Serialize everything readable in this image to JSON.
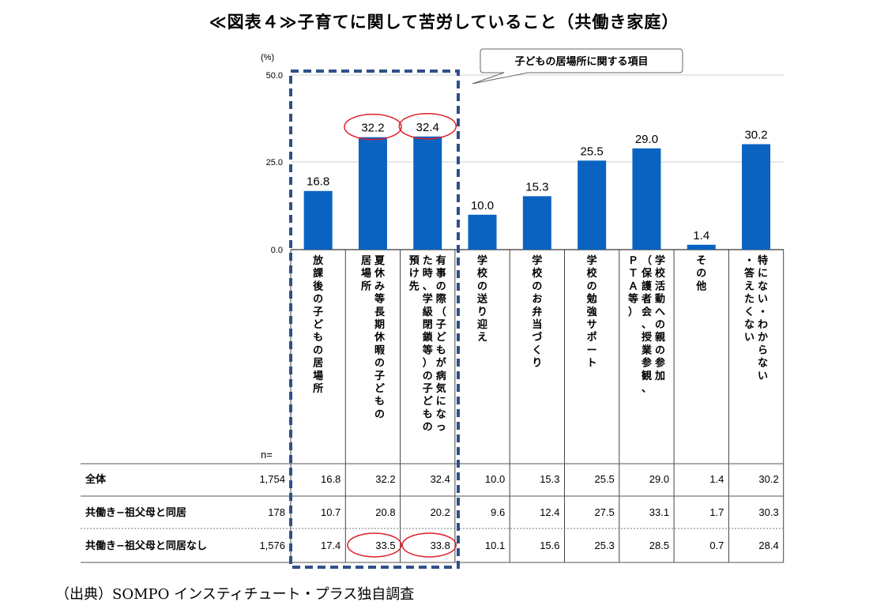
{
  "title": "≪図表４≫子育てに関して苦労していること（共働き家庭）",
  "source": "（出典）SOMPO インスティチュート・プラス独自調査",
  "callout": "子どもの居場所に関する項目",
  "n_label": "n=",
  "colors": {
    "bar": "#0b63c1",
    "highlight": "#e0202a",
    "box": "#2f4f8a"
  },
  "chart_data": {
    "type": "bar",
    "title": "≪図表４≫子育てに関して苦労していること（共働き家庭）",
    "ylabel": "(%)",
    "ylim": [
      0,
      50
    ],
    "yticks": [
      "50.0",
      "25.0",
      "0.0"
    ],
    "categories": [
      "放課後の子どもの居場所",
      "夏休み等長期休暇の子どもの居場所",
      "有事の際（子どもが病気になった時、学級閉鎖等）の子どもの預け先",
      "学校の送り迎え",
      "学校のお弁当づくり",
      "学校の勉強サポート",
      "学校活動への親の参加（保護者会、授業参観、ＰＴＡ等）",
      "その他",
      "特にない・わからない・答えたくない"
    ],
    "category_lines": [
      [
        "放課後の子どもの居場所"
      ],
      [
        "夏休み等長期休暇の子どもの",
        "居場所"
      ],
      [
        "有事の際（子どもが病気になっ",
        "た時、学級閉鎖等）の子どもの",
        "預け先"
      ],
      [
        "学校の送り迎え"
      ],
      [
        "学校のお弁当づくり"
      ],
      [
        "学校の勉強サポート"
      ],
      [
        "学校活動への親の参加",
        "（保護者会、授業参観、",
        "ＰＴＡ等）"
      ],
      [
        "その他"
      ],
      [
        "特にない・わからない",
        "・答えたくない"
      ]
    ],
    "values": [
      16.8,
      32.2,
      32.4,
      10.0,
      15.3,
      25.5,
      29.0,
      1.4,
      30.2
    ],
    "value_labels": [
      "16.8",
      "32.2",
      "32.4",
      "10.0",
      "15.3",
      "25.5",
      "29.0",
      "1.4",
      "30.2"
    ],
    "highlighted_bars": [
      1,
      2
    ]
  },
  "table": {
    "rows": [
      {
        "label": "全体",
        "n": "1,754",
        "cells": [
          "16.8",
          "32.2",
          "32.4",
          "10.0",
          "15.3",
          "25.5",
          "29.0",
          "1.4",
          "30.2"
        ]
      },
      {
        "label": "共働き−祖父母と同居",
        "n": "178",
        "cells": [
          "10.7",
          "20.8",
          "20.2",
          "9.6",
          "12.4",
          "27.5",
          "33.1",
          "1.7",
          "30.3"
        ]
      },
      {
        "label": "共働き−祖父母と同居なし",
        "n": "1,576",
        "cells": [
          "17.4",
          "33.5",
          "33.8",
          "10.1",
          "15.6",
          "25.3",
          "28.5",
          "0.7",
          "28.4"
        ]
      }
    ],
    "highlighted_cells": [
      [
        2,
        1
      ],
      [
        2,
        2
      ]
    ]
  }
}
